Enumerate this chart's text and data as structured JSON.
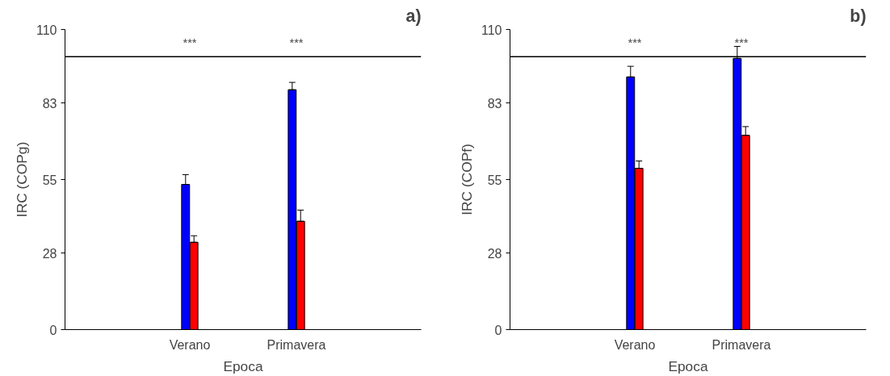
{
  "chart_data": [
    {
      "type": "bar",
      "title": "a)",
      "xlabel": "Epoca",
      "ylabel": "IRC (COPg)",
      "categories": [
        "Verano",
        "Primavera"
      ],
      "series": [
        {
          "color": "#0000ff",
          "values": [
            53.2,
            87.9
          ],
          "errors": [
            [
              53.2,
              56.8
            ],
            [
              87.9,
              90.6
            ]
          ]
        },
        {
          "color": "#ff0000",
          "values": [
            32,
            39.7
          ],
          "errors": [
            [
              32,
              34.4
            ],
            [
              39.7,
              43.8
            ]
          ]
        }
      ],
      "ylim": [
        0,
        110
      ],
      "yticks": [
        0,
        28,
        55,
        83,
        110
      ],
      "grid": false,
      "ref_lines": [
        {
          "axis": "y",
          "value": 100,
          "color": "#000000"
        }
      ],
      "annotations": [
        "***",
        "***"
      ]
    },
    {
      "type": "bar",
      "title": "b)",
      "xlabel": "Epoca",
      "ylabel": "IRC (COPf)",
      "categories": [
        "Verano",
        "Primavera"
      ],
      "series": [
        {
          "color": "#0000ff",
          "values": [
            92.6,
            99.4
          ],
          "errors": [
            [
              92.6,
              96.5
            ],
            [
              99.4,
              103.8
            ]
          ]
        },
        {
          "color": "#ff0000",
          "values": [
            59.1,
            71.2
          ],
          "errors": [
            [
              59.1,
              61.8
            ],
            [
              71.2,
              74.4
            ]
          ]
        }
      ],
      "ylim": [
        0,
        110
      ],
      "yticks": [
        0,
        28,
        55,
        83,
        110
      ],
      "grid": false,
      "ref_lines": [
        {
          "axis": "y",
          "value": 100,
          "color": "#000000"
        }
      ],
      "annotations": [
        "***",
        "***"
      ]
    }
  ]
}
